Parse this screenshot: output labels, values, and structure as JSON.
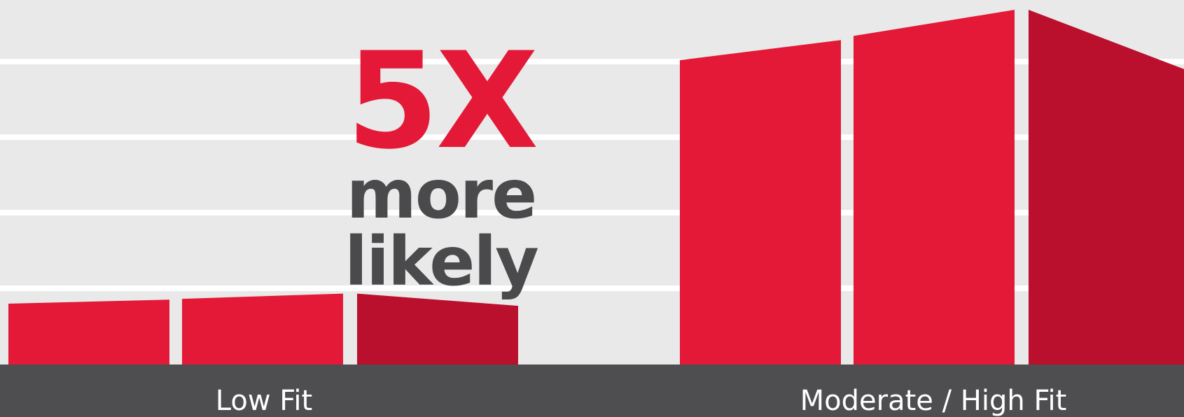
{
  "chart_data": {
    "type": "bar",
    "categories": [
      "Low Fit",
      "Moderate / High Fit"
    ],
    "values": [
      1,
      5
    ],
    "annotation": {
      "value": "5X",
      "text": "more likely"
    },
    "grid": true,
    "colors": {
      "bar": "#e31937",
      "bar_side": "#bb102d",
      "background": "#e8e9e8",
      "grid": "#ffffff",
      "footer": "#4e4e50",
      "label": "#ffffff",
      "multiplier": "#e31937",
      "subtext": "#4a4a4c"
    }
  }
}
